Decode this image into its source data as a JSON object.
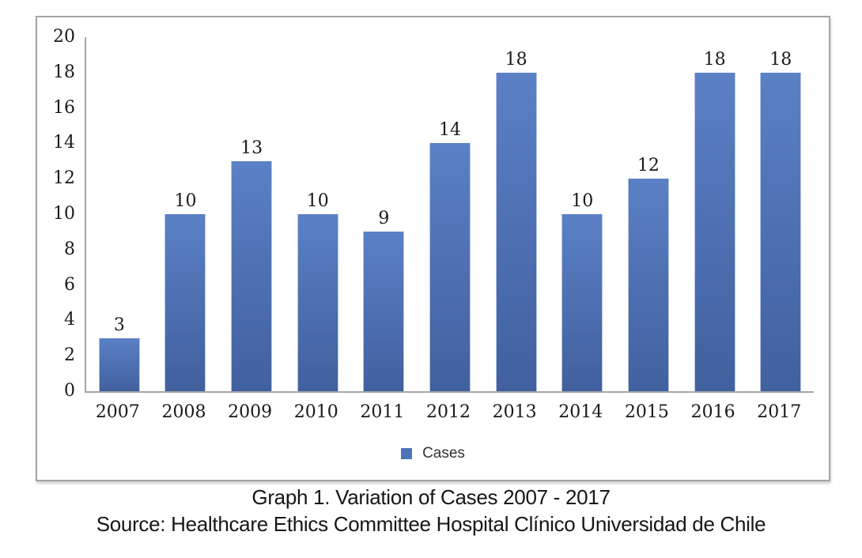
{
  "figure": {
    "legend": {
      "label": "Cases",
      "swatch_color": "#4d73b9"
    },
    "caption": {
      "line1": "Graph 1. Variation of Cases 2007 - 2017",
      "line2": "Source: Healthcare Ethics Committee Hospital Clínico Universidad de Chile"
    }
  },
  "chart_data": {
    "type": "bar",
    "title": "Graph 1. Variation of Cases 2007 - 2017",
    "categories": [
      "2007",
      "2008",
      "2009",
      "2010",
      "2011",
      "2012",
      "2013",
      "2014",
      "2015",
      "2016",
      "2017"
    ],
    "values": [
      3,
      10,
      13,
      10,
      9,
      14,
      18,
      10,
      12,
      18,
      18
    ],
    "series_name": "Cases",
    "xlabel": "",
    "ylabel": "",
    "ylim": [
      0,
      20
    ],
    "y_ticks": [
      0,
      2,
      4,
      6,
      8,
      10,
      12,
      14,
      16,
      18,
      20
    ],
    "grid": false,
    "data_labels": true,
    "legend_position": "bottom",
    "colors": {
      "bar_top": "#5b80c6",
      "bar_bottom": "#41609e",
      "axis": "#a6a6a6",
      "frame_border": "#a3a3a3",
      "text": "#1a1a1a"
    }
  }
}
